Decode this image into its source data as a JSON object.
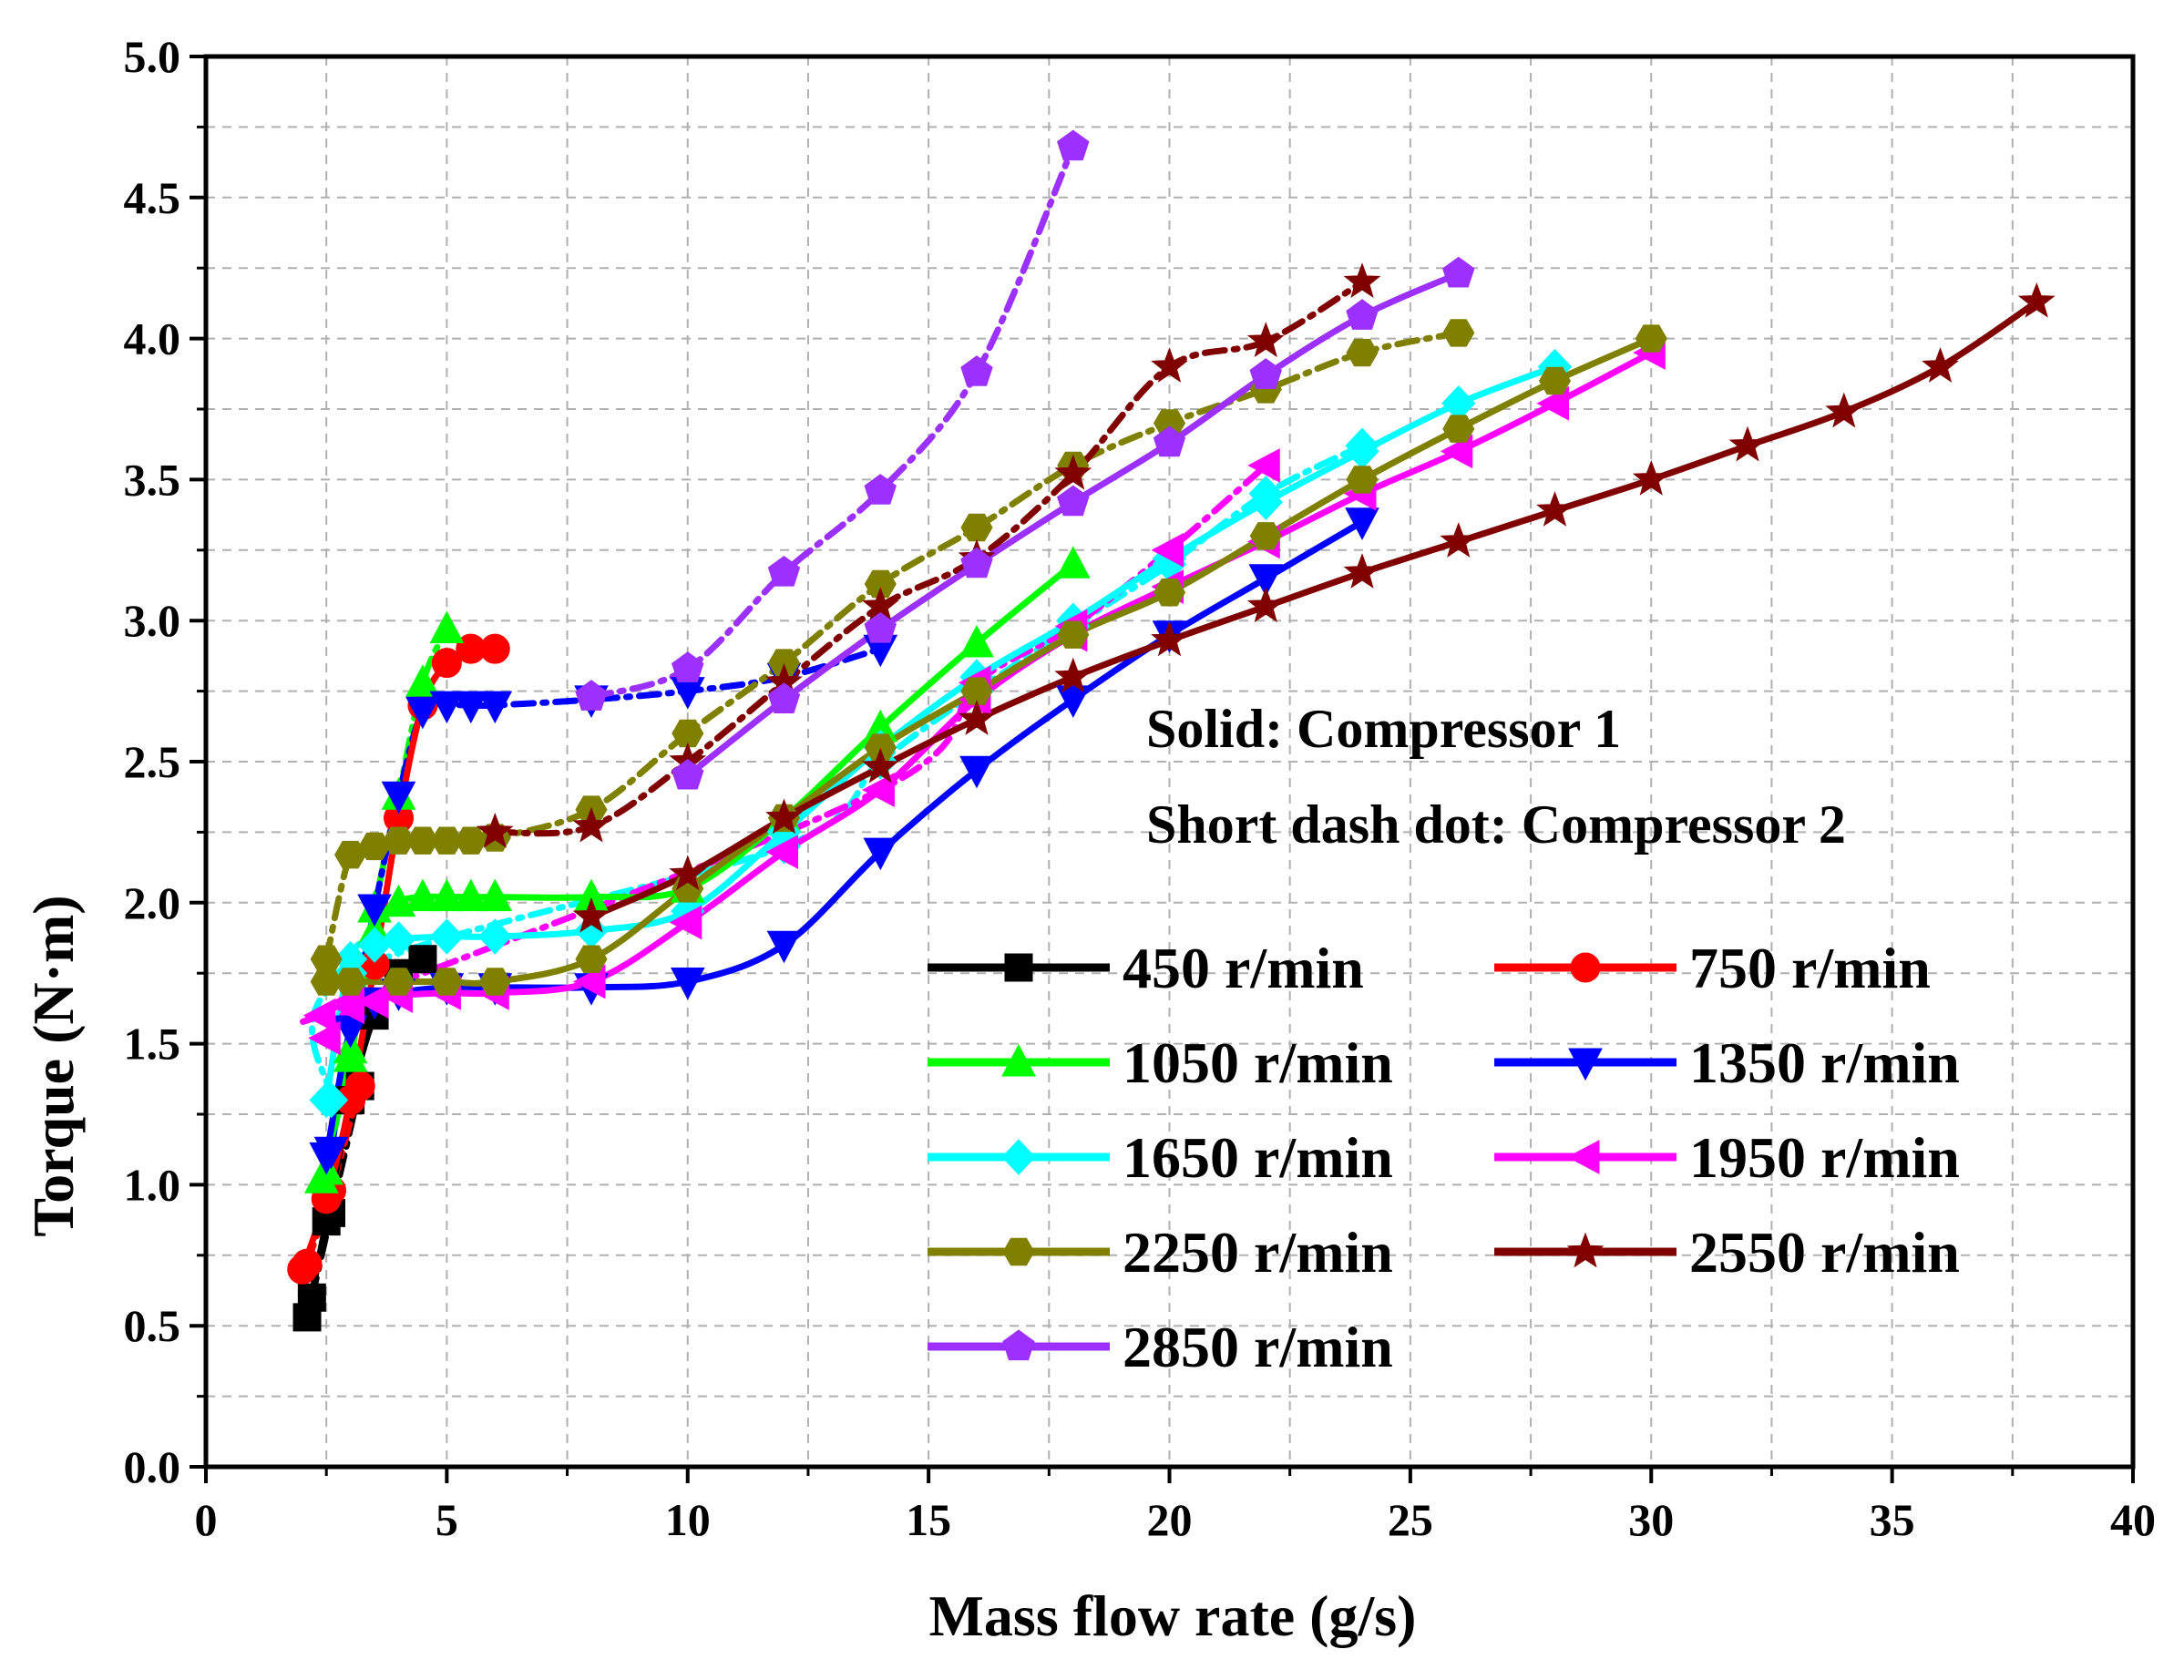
{
  "chart_data": {
    "type": "line",
    "xlabel": "Mass flow rate (g/s)",
    "ylabel": "Torque (N·m)",
    "xlim": [
      0,
      40
    ],
    "ylim": [
      0,
      5
    ],
    "xticks": [
      0,
      5,
      10,
      15,
      20,
      25,
      30,
      35,
      40
    ],
    "xtick_labels": [
      "0",
      "5",
      "10",
      "15",
      "20",
      "25",
      "30",
      "35",
      "40"
    ],
    "yticks": [
      0,
      0.5,
      1,
      1.5,
      2,
      2.5,
      3,
      3.5,
      4,
      4.5,
      5
    ],
    "ytick_labels": [
      "0.0",
      "0.5",
      "1.0",
      "1.5",
      "2.0",
      "2.5",
      "3.0",
      "3.5",
      "4.0",
      "4.5",
      "5.0"
    ],
    "grid": true,
    "annotations": [
      "Solid: Compressor 1",
      "Short dash dot: Compressor 2"
    ],
    "legend_placement": "lower-right",
    "series": [
      {
        "name": "450 r/min",
        "color": "#000000",
        "marker": "square",
        "c1": [
          [
            2.1,
            0.53
          ],
          [
            2.5,
            0.87
          ],
          [
            3.0,
            1.3
          ],
          [
            3.5,
            1.6
          ],
          [
            4.0,
            1.75
          ],
          [
            4.5,
            1.8
          ]
        ],
        "c2": [
          [
            2.2,
            0.6
          ],
          [
            2.6,
            0.9
          ],
          [
            3.2,
            1.35
          ]
        ]
      },
      {
        "name": "750 r/min",
        "color": "#ff0000",
        "marker": "circle",
        "c1": [
          [
            2.0,
            0.7
          ],
          [
            2.5,
            0.95
          ],
          [
            3.0,
            1.3
          ],
          [
            3.5,
            1.78
          ],
          [
            4.0,
            2.3
          ],
          [
            4.5,
            2.7
          ],
          [
            5.0,
            2.85
          ],
          [
            5.5,
            2.9
          ],
          [
            6.0,
            2.9
          ]
        ],
        "c2": [
          [
            2.1,
            0.72
          ],
          [
            2.6,
            0.98
          ],
          [
            3.2,
            1.35
          ]
        ]
      },
      {
        "name": "1050 r/min",
        "color": "#00ff00",
        "marker": "triangle-up",
        "c1": [
          [
            2.4,
            1.02
          ],
          [
            3.0,
            1.45
          ],
          [
            3.5,
            1.9
          ],
          [
            4.0,
            2.0
          ],
          [
            4.5,
            2.02
          ],
          [
            5.0,
            2.02
          ],
          [
            5.5,
            2.02
          ],
          [
            6.0,
            2.02
          ],
          [
            8.0,
            2.02
          ],
          [
            10.0,
            2.05
          ],
          [
            12.0,
            2.3
          ],
          [
            14.0,
            2.62
          ],
          [
            16.0,
            2.92
          ],
          [
            18.0,
            3.2
          ]
        ],
        "c2": [
          [
            2.5,
            1.05
          ],
          [
            3.0,
            1.48
          ],
          [
            3.5,
            1.98
          ],
          [
            4.0,
            2.38
          ],
          [
            4.5,
            2.78
          ],
          [
            5.0,
            2.97
          ]
        ]
      },
      {
        "name": "1350 r/min",
        "color": "#0000ff",
        "marker": "triangle-down",
        "c1": [
          [
            2.5,
            1.1
          ],
          [
            3.0,
            1.55
          ],
          [
            3.5,
            1.65
          ],
          [
            4.0,
            1.68
          ],
          [
            5.0,
            1.7
          ],
          [
            6.0,
            1.7
          ],
          [
            8.0,
            1.7
          ],
          [
            10.0,
            1.72
          ],
          [
            12.0,
            1.85
          ],
          [
            14.0,
            2.18
          ],
          [
            16.0,
            2.47
          ],
          [
            18.0,
            2.72
          ],
          [
            20.0,
            2.95
          ],
          [
            22.0,
            3.15
          ],
          [
            24.0,
            3.35
          ]
        ],
        "c2": [
          [
            2.6,
            1.12
          ],
          [
            3.0,
            1.55
          ],
          [
            3.5,
            1.98
          ],
          [
            4.0,
            2.38
          ],
          [
            4.5,
            2.68
          ],
          [
            5.0,
            2.7
          ],
          [
            5.5,
            2.7
          ],
          [
            6.0,
            2.7
          ],
          [
            8.0,
            2.72
          ],
          [
            10.0,
            2.75
          ],
          [
            12.0,
            2.8
          ],
          [
            14.0,
            2.9
          ]
        ]
      },
      {
        "name": "1650 r/min",
        "color": "#00ffff",
        "marker": "diamond",
        "c1": [
          [
            2.5,
            1.3
          ],
          [
            3.0,
            1.8
          ],
          [
            3.5,
            1.85
          ],
          [
            4.0,
            1.87
          ],
          [
            5.0,
            1.88
          ],
          [
            6.0,
            1.88
          ],
          [
            8.0,
            1.9
          ],
          [
            10.0,
            1.97
          ],
          [
            12.0,
            2.25
          ],
          [
            14.0,
            2.55
          ],
          [
            16.0,
            2.8
          ],
          [
            18.0,
            3.0
          ],
          [
            20.0,
            3.22
          ],
          [
            22.0,
            3.42
          ],
          [
            24.0,
            3.6
          ],
          [
            26.0,
            3.77
          ],
          [
            28.0,
            3.9
          ]
        ],
        "c2": [
          [
            2.6,
            1.3
          ],
          [
            3.0,
            1.75
          ],
          [
            12.0,
            2.2
          ],
          [
            14.0,
            2.5
          ],
          [
            16.0,
            2.75
          ],
          [
            18.0,
            2.98
          ],
          [
            20.0,
            3.2
          ],
          [
            22.0,
            3.45
          ],
          [
            24.0,
            3.62
          ]
        ]
      },
      {
        "name": "1950 r/min",
        "color": "#ff00ff",
        "marker": "triangle-left",
        "c1": [
          [
            2.5,
            1.52
          ],
          [
            3.0,
            1.63
          ],
          [
            3.5,
            1.65
          ],
          [
            4.0,
            1.67
          ],
          [
            5.0,
            1.68
          ],
          [
            6.0,
            1.68
          ],
          [
            8.0,
            1.72
          ],
          [
            10.0,
            1.93
          ],
          [
            12.0,
            2.18
          ],
          [
            14.0,
            2.4
          ],
          [
            16.0,
            2.72
          ],
          [
            18.0,
            2.95
          ],
          [
            20.0,
            3.12
          ],
          [
            22.0,
            3.28
          ],
          [
            24.0,
            3.45
          ],
          [
            26.0,
            3.6
          ],
          [
            28.0,
            3.77
          ],
          [
            30.0,
            3.95
          ]
        ],
        "c2": [
          [
            2.4,
            1.6
          ],
          [
            3.0,
            1.65
          ],
          [
            14.0,
            2.4
          ],
          [
            16.0,
            2.78
          ],
          [
            18.0,
            2.98
          ],
          [
            20.0,
            3.25
          ],
          [
            22.0,
            3.55
          ]
        ]
      },
      {
        "name": "2250 r/min",
        "color": "#808000",
        "marker": "hexagon",
        "c1": [
          [
            2.5,
            1.72
          ],
          [
            3.0,
            1.72
          ],
          [
            4.0,
            1.72
          ],
          [
            5.0,
            1.72
          ],
          [
            6.0,
            1.72
          ],
          [
            8.0,
            1.8
          ],
          [
            10.0,
            2.05
          ],
          [
            12.0,
            2.3
          ],
          [
            14.0,
            2.55
          ],
          [
            16.0,
            2.75
          ],
          [
            18.0,
            2.95
          ],
          [
            20.0,
            3.1
          ],
          [
            22.0,
            3.3
          ],
          [
            24.0,
            3.5
          ],
          [
            26.0,
            3.68
          ],
          [
            28.0,
            3.85
          ],
          [
            30.0,
            4.0
          ]
        ],
        "c2": [
          [
            2.5,
            1.8
          ],
          [
            3.0,
            2.17
          ],
          [
            3.5,
            2.2
          ],
          [
            4.0,
            2.22
          ],
          [
            4.5,
            2.22
          ],
          [
            5.0,
            2.22
          ],
          [
            5.5,
            2.22
          ],
          [
            6.0,
            2.23
          ],
          [
            8.0,
            2.33
          ],
          [
            10.0,
            2.6
          ],
          [
            12.0,
            2.85
          ],
          [
            14.0,
            3.13
          ],
          [
            16.0,
            3.33
          ],
          [
            18.0,
            3.55
          ],
          [
            20.0,
            3.7
          ],
          [
            22.0,
            3.82
          ],
          [
            24.0,
            3.95
          ],
          [
            26.0,
            4.02
          ]
        ]
      },
      {
        "name": "2550 r/min",
        "color": "#800000",
        "marker": "star",
        "c1": [
          [
            8.0,
            1.95
          ],
          [
            10.0,
            2.1
          ],
          [
            12.0,
            2.3
          ],
          [
            14.0,
            2.48
          ],
          [
            16.0,
            2.65
          ],
          [
            18.0,
            2.8
          ],
          [
            20.0,
            2.93
          ],
          [
            22.0,
            3.05
          ],
          [
            24.0,
            3.17
          ],
          [
            26.0,
            3.28
          ],
          [
            28.0,
            3.39
          ],
          [
            30.0,
            3.5
          ],
          [
            32.0,
            3.62
          ],
          [
            34.0,
            3.74
          ],
          [
            36.0,
            3.9
          ],
          [
            38.0,
            4.13
          ]
        ],
        "c2": [
          [
            6.0,
            2.25
          ],
          [
            8.0,
            2.27
          ],
          [
            10.0,
            2.5
          ],
          [
            12.0,
            2.78
          ],
          [
            14.0,
            3.05
          ],
          [
            16.0,
            3.22
          ],
          [
            18.0,
            3.52
          ],
          [
            20.0,
            3.9
          ],
          [
            22.0,
            3.99
          ],
          [
            24.0,
            4.2
          ]
        ]
      },
      {
        "name": "2850 r/min",
        "color": "#9b30ff",
        "marker": "pentagon",
        "c1": [
          [
            10.0,
            2.45
          ],
          [
            12.0,
            2.72
          ],
          [
            14.0,
            2.97
          ],
          [
            16.0,
            3.2
          ],
          [
            18.0,
            3.42
          ],
          [
            20.0,
            3.63
          ],
          [
            22.0,
            3.87
          ],
          [
            24.0,
            4.08
          ],
          [
            26.0,
            4.23
          ]
        ],
        "c2": [
          [
            8.0,
            2.73
          ],
          [
            10.0,
            2.83
          ],
          [
            12.0,
            3.17
          ],
          [
            14.0,
            3.46
          ],
          [
            16.0,
            3.88
          ],
          [
            18.0,
            4.68
          ]
        ]
      }
    ]
  }
}
